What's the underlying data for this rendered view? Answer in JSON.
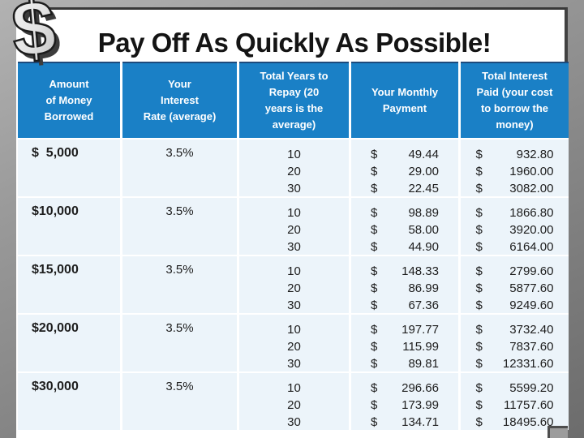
{
  "slide": {
    "title": "Pay Off As Quickly As Possible!"
  },
  "decorations": {
    "dollar_glyph": "$"
  },
  "colors": {
    "header_blue": "#1a80c6",
    "header_top_border": "#1c4a7c",
    "cell_background": "#ecf4fa",
    "slide_background": "#ffffff",
    "frame_gray": "#8a8a8a",
    "text_dark": "#1d1d1d"
  },
  "table": {
    "currency": "$",
    "headers": [
      "Amount\nof Money\nBorrowed",
      "Your\nInterest\nRate (average)",
      "Total Years to\nRepay (20\nyears is the\naverage)",
      "Your Monthly\nPayment",
      "Total Interest\nPaid (your cost\nto borrow the\nmoney)"
    ],
    "rows": [
      {
        "amount": "$  5,000",
        "rate": "3.5%",
        "years": [
          "10",
          "20",
          "30"
        ],
        "monthly_payment": [
          "49.44",
          "29.00",
          "22.45"
        ],
        "total_interest": [
          "932.80",
          "1960.00",
          "3082.00"
        ]
      },
      {
        "amount": "$10,000",
        "rate": "3.5%",
        "years": [
          "10",
          "20",
          "30"
        ],
        "monthly_payment": [
          "98.89",
          "58.00",
          "44.90"
        ],
        "total_interest": [
          "1866.80",
          "3920.00",
          "6164.00"
        ]
      },
      {
        "amount": "$15,000",
        "rate": "3.5%",
        "years": [
          "10",
          "20",
          "30"
        ],
        "monthly_payment": [
          "148.33",
          "86.99",
          "67.36"
        ],
        "total_interest": [
          "2799.60",
          "5877.60",
          "9249.60"
        ]
      },
      {
        "amount": "$20,000",
        "rate": "3.5%",
        "years": [
          "10",
          "20",
          "30"
        ],
        "monthly_payment": [
          "197.77",
          "115.99",
          "89.81"
        ],
        "total_interest": [
          "3732.40",
          "7837.60",
          "12331.60"
        ]
      },
      {
        "amount": "$30,000",
        "rate": "3.5%",
        "years": [
          "10",
          "20",
          "30"
        ],
        "monthly_payment": [
          "296.66",
          "173.99",
          "134.71"
        ],
        "total_interest": [
          "5599.20",
          "11757.60",
          "18495.60"
        ]
      }
    ]
  }
}
